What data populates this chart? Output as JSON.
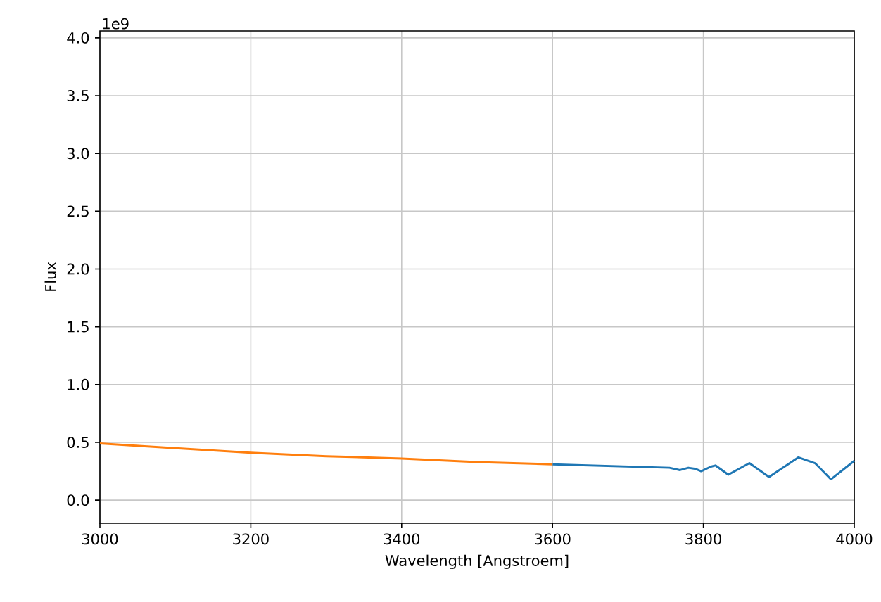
{
  "chart_data": {
    "type": "line",
    "xlabel": "Wavelength [Angstroem]",
    "ylabel": "Flux",
    "annotations": [
      "1e9"
    ],
    "series": [
      {
        "color": "#1f77b4",
        "x": [
          3600,
          3755,
          3769,
          3780,
          3790,
          3797,
          3810,
          3816,
          3833,
          3861,
          3887,
          3926,
          3948,
          3969,
          4000
        ],
        "values": [
          0.31,
          0.28,
          0.26,
          0.28,
          0.27,
          0.25,
          0.29,
          0.3,
          0.22,
          0.32,
          0.2,
          0.37,
          0.32,
          0.18,
          0.34
        ]
      },
      {
        "color": "#ff7f0e",
        "x": [
          3000,
          3100,
          3200,
          3300,
          3400,
          3500,
          3600
        ],
        "values": [
          0.49,
          0.45,
          0.41,
          0.38,
          0.36,
          0.33,
          0.31
        ]
      }
    ],
    "xlim": [
      3000,
      4000
    ],
    "ylim": [
      -0.2,
      4.06
    ],
    "xticks": [
      3000,
      3200,
      3400,
      3600,
      3800,
      4000
    ],
    "yticks": [
      {
        "value": 0,
        "label": "0.0"
      },
      {
        "value": 0.5,
        "label": "0.5"
      },
      {
        "value": 1,
        "label": "1.0"
      },
      {
        "value": 1.5,
        "label": "1.5"
      },
      {
        "value": 2,
        "label": "2.0"
      },
      {
        "value": 2.5,
        "label": "2.5"
      },
      {
        "value": 3,
        "label": "3.0"
      },
      {
        "value": 3.5,
        "label": "3.5"
      },
      {
        "value": 4,
        "label": "4.0"
      }
    ],
    "grid": true
  }
}
